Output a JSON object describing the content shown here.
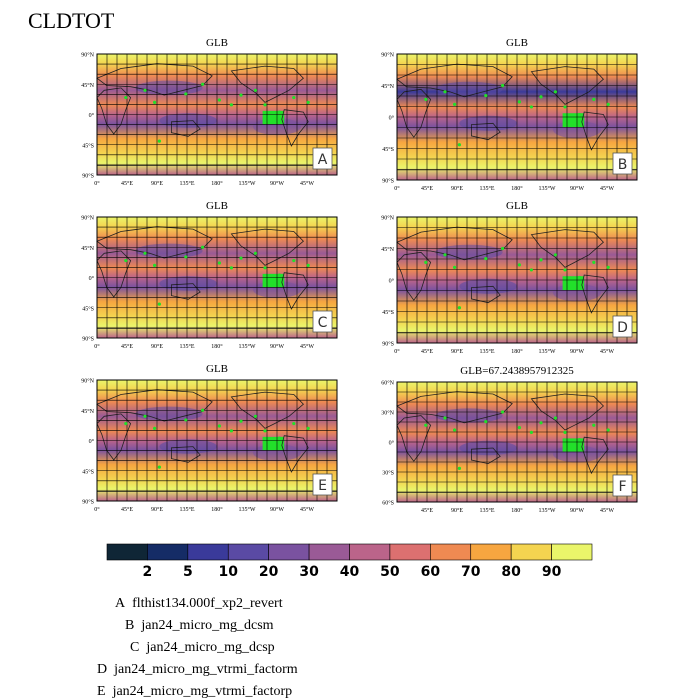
{
  "title": "CLDTOT",
  "colorbar": {
    "labels": [
      "2",
      "5",
      "10",
      "20",
      "30",
      "40",
      "50",
      "60",
      "70",
      "80",
      "90"
    ],
    "colors": [
      "#0f2636",
      "#152c66",
      "#3a3a9a",
      "#5a4aa4",
      "#7a52a0",
      "#9a5a96",
      "#bb648a",
      "#dc7070",
      "#ef8a52",
      "#f7a640",
      "#f4d450",
      "#eaf56a"
    ]
  },
  "panels": [
    {
      "id": "A",
      "title": "GLB",
      "lat_ticks": [
        "90°N",
        "45°N",
        "0°",
        "45°S",
        "90°S"
      ],
      "lon_ticks": [
        "0°",
        "45°E",
        "90°E",
        "135°E",
        "180°",
        "135°W",
        "90°W",
        "45°W"
      ]
    },
    {
      "id": "B",
      "title": "GLB",
      "lat_ticks": [
        "90°N",
        "45°N",
        "0°",
        "45°S",
        "90°S"
      ],
      "lon_ticks": [
        "0°",
        "45°E",
        "90°E",
        "135°E",
        "180°",
        "135°W",
        "90°W",
        "45°W"
      ]
    },
    {
      "id": "C",
      "title": "GLB",
      "lat_ticks": [
        "90°N",
        "45°N",
        "0°",
        "45°S",
        "90°S"
      ],
      "lon_ticks": [
        "0°",
        "45°E",
        "90°E",
        "135°E",
        "180°",
        "135°W",
        "90°W",
        "45°W"
      ]
    },
    {
      "id": "D",
      "title": "GLB",
      "lat_ticks": [
        "90°N",
        "45°N",
        "0°",
        "45°S",
        "90°S"
      ],
      "lon_ticks": [
        "0°",
        "45°E",
        "90°E",
        "135°E",
        "180°",
        "135°W",
        "90°W",
        "45°W"
      ]
    },
    {
      "id": "E",
      "title": "GLB",
      "lat_ticks": [
        "90°N",
        "45°N",
        "0°",
        "45°S",
        "90°S"
      ],
      "lon_ticks": [
        "0°",
        "45°E",
        "90°E",
        "135°E",
        "180°",
        "135°W",
        "90°W",
        "45°W"
      ]
    },
    {
      "id": "F",
      "title": "GLB=67.2438957912325",
      "lat_ticks": [
        "60°N",
        "30°N",
        "0°",
        "30°S",
        "60°S"
      ],
      "lon_ticks": [
        "45°E",
        "90°E",
        "135°E",
        "180°",
        "135°W",
        "90°W",
        "45°W"
      ]
    }
  ],
  "legend": [
    {
      "letter": "A",
      "name": "flthist134.000f_xp2_revert"
    },
    {
      "letter": "B",
      "name": "jan24_micro_mg_dcsm"
    },
    {
      "letter": "C",
      "name": "jan24_micro_mg_dcsp"
    },
    {
      "letter": "D",
      "name": "jan24_micro_mg_vtrmi_factorm"
    },
    {
      "letter": "E",
      "name": "jan24_micro_mg_vtrmi_factorp"
    }
  ],
  "chart_data": {
    "type": "heatmap",
    "title": "CLDTOT",
    "variable": "CLDTOT",
    "subplots": [
      "A",
      "B",
      "C",
      "D",
      "E",
      "F"
    ],
    "global_mean_F": 67.2438957912325,
    "colorbar_levels": [
      2,
      5,
      10,
      20,
      30,
      40,
      50,
      60,
      70,
      80,
      90
    ]
  }
}
